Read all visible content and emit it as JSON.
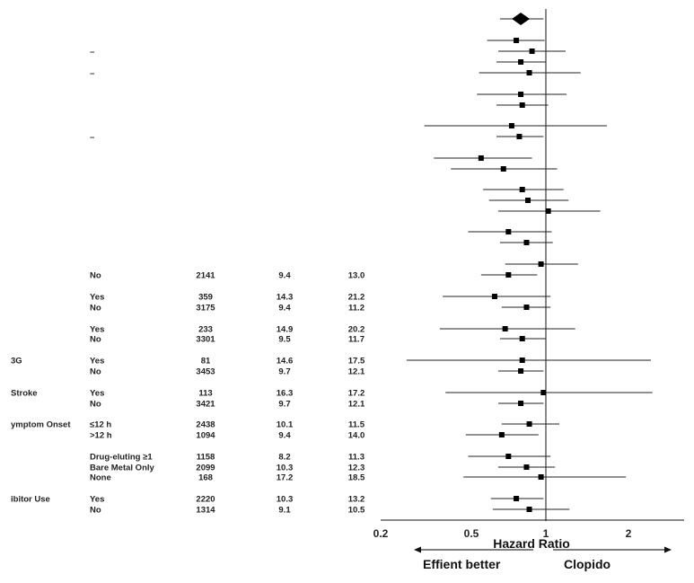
{
  "chart_data": {
    "type": "forest",
    "xlabel": "Hazard Ratio",
    "xscale": "log",
    "xlim": [
      0.2,
      2.6
    ],
    "reference_line": 1,
    "ticks": [
      {
        "value": 0.2,
        "label": "0.2"
      },
      {
        "value": 0.5,
        "label": "0.5"
      },
      {
        "value": 1,
        "label": "1"
      },
      {
        "value": 2,
        "label": "2"
      }
    ],
    "direction_labels": {
      "left": "Effient better",
      "right": "Clopido"
    },
    "rows": [
      {
        "hr": 0.81,
        "lo": 0.68,
        "hi": 0.98,
        "overall": true
      },
      {
        "hr": 0.78,
        "lo": 0.61,
        "hi": 0.99
      },
      {
        "hr": 0.89,
        "lo": 0.67,
        "hi": 1.18,
        "dash": "–"
      },
      {
        "hr": 0.81,
        "lo": 0.66,
        "hi": 1.0
      },
      {
        "hr": 0.87,
        "lo": 0.57,
        "hi": 1.34,
        "dash": "–"
      },
      {
        "hr": 0.81,
        "lo": 0.56,
        "hi": 1.19
      },
      {
        "hr": 0.82,
        "lo": 0.66,
        "hi": 1.02
      },
      {
        "hr": 0.75,
        "lo": 0.36,
        "hi": 1.67
      },
      {
        "hr": 0.8,
        "lo": 0.66,
        "hi": 0.98,
        "dash": "–"
      },
      {
        "hr": 0.58,
        "lo": 0.39,
        "hi": 0.89
      },
      {
        "hr": 0.7,
        "lo": 0.45,
        "hi": 1.1
      },
      {
        "hr": 0.82,
        "lo": 0.59,
        "hi": 1.16
      },
      {
        "hr": 0.86,
        "lo": 0.62,
        "hi": 1.21
      },
      {
        "hr": 1.02,
        "lo": 0.67,
        "hi": 1.58
      },
      {
        "hr": 0.73,
        "lo": 0.52,
        "hi": 1.05
      },
      {
        "hr": 0.85,
        "lo": 0.68,
        "hi": 1.06
      },
      {
        "hr": 0.96,
        "lo": 0.71,
        "hi": 1.31
      },
      {
        "hr": 0.73,
        "lo": 0.58,
        "hi": 0.93,
        "sub": "No",
        "n": "2141",
        "r1": "9.4",
        "r2": "13.0"
      },
      {
        "hr": 0.65,
        "lo": 0.42,
        "hi": 1.04,
        "sub": "Yes",
        "n": "359",
        "r1": "14.3",
        "r2": "21.2"
      },
      {
        "hr": 0.85,
        "lo": 0.69,
        "hi": 1.04,
        "sub": "No",
        "n": "3175",
        "r1": "9.4",
        "r2": "11.2"
      },
      {
        "hr": 0.71,
        "lo": 0.41,
        "hi": 1.28,
        "sub": "Yes",
        "n": "233",
        "r1": "14.9",
        "r2": "20.2"
      },
      {
        "hr": 0.82,
        "lo": 0.68,
        "hi": 1.0,
        "sub": "No",
        "n": "3301",
        "r1": "9.5",
        "r2": "11.7"
      },
      {
        "hr": 0.82,
        "lo": 0.31,
        "hi": 2.42,
        "group": "3G",
        "sub": "Yes",
        "n": "81",
        "r1": "14.6",
        "r2": "17.5"
      },
      {
        "hr": 0.81,
        "lo": 0.67,
        "hi": 0.98,
        "sub": "No",
        "n": "3453",
        "r1": "9.7",
        "r2": "12.1"
      },
      {
        "hr": 0.98,
        "lo": 0.43,
        "hi": 2.45,
        "group": "Stroke",
        "sub": "Yes",
        "n": "113",
        "r1": "16.3",
        "r2": "17.2"
      },
      {
        "hr": 0.81,
        "lo": 0.67,
        "hi": 0.98,
        "sub": "No",
        "n": "3421",
        "r1": "9.7",
        "r2": "12.1"
      },
      {
        "hr": 0.87,
        "lo": 0.69,
        "hi": 1.12,
        "group": "ymptom Onset",
        "sub": "≤12 h",
        "n": "2438",
        "r1": "10.1",
        "r2": "11.5"
      },
      {
        "hr": 0.69,
        "lo": 0.51,
        "hi": 0.94,
        "sub": ">12 h",
        "n": "1094",
        "r1": "9.4",
        "r2": "14.0"
      },
      {
        "hr": 0.73,
        "lo": 0.52,
        "hi": 1.04,
        "sub": "Drug-eluting ≥1",
        "n": "1158",
        "r1": "8.2",
        "r2": "11.3"
      },
      {
        "hr": 0.85,
        "lo": 0.67,
        "hi": 1.08,
        "sub": "Bare Metal Only",
        "n": "2099",
        "r1": "10.3",
        "r2": "12.3"
      },
      {
        "hr": 0.96,
        "lo": 0.5,
        "hi": 1.96,
        "sub": "None",
        "n": "168",
        "r1": "17.2",
        "r2": "18.5"
      },
      {
        "hr": 0.78,
        "lo": 0.63,
        "hi": 0.98,
        "group": "ibitor Use",
        "sub": "Yes",
        "n": "2220",
        "r1": "10.3",
        "r2": "13.2"
      },
      {
        "hr": 0.87,
        "lo": 0.64,
        "hi": 1.22,
        "sub": "No",
        "n": "1314",
        "r1": "9.1",
        "r2": "10.5"
      }
    ]
  }
}
